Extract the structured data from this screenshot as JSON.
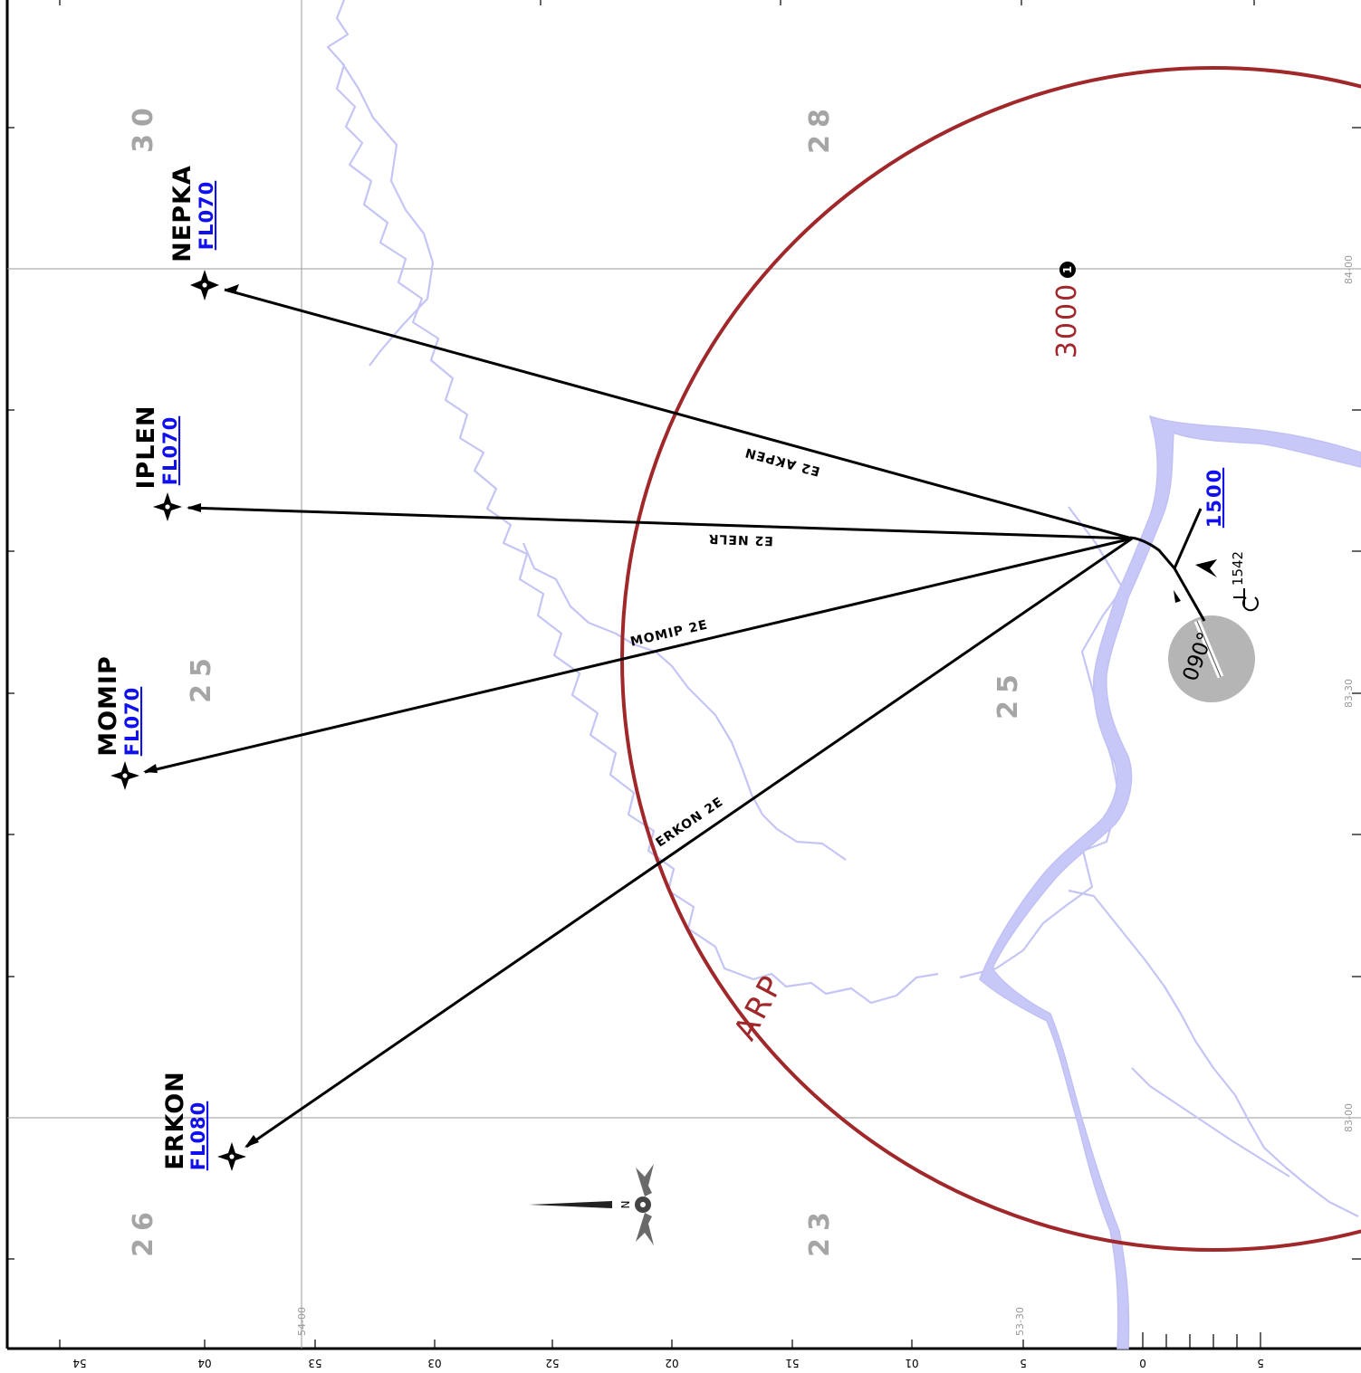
{
  "chart": {
    "arp_label": "ARP",
    "msa_altitude": "3000",
    "msa_note_marker": "1",
    "climb_altitude": "1500",
    "runway_label": "090°",
    "obstacle_elevation": "1542",
    "north_label": "N",
    "colors": {
      "msa_circle": "#a0272a",
      "flight_level": "#1010ee",
      "river": "#c5c5f5",
      "grid": "#999999",
      "elevation": "#a5a5a5",
      "airport_area": "#b5b5b5"
    }
  },
  "waypoints": [
    {
      "name": "NEPKA",
      "level": "FL070"
    },
    {
      "name": "IPLEN",
      "level": "FL070"
    },
    {
      "name": "MOMIP",
      "level": "FL070"
    },
    {
      "name": "ERKON",
      "level": "FL080"
    }
  ],
  "routes": [
    {
      "label": "E2 AKPEN"
    },
    {
      "label": "E2 NELR"
    },
    {
      "label": "MOMIP 2E"
    },
    {
      "label": "ERKON 2E"
    }
  ],
  "grid_elevations": [
    "30",
    "28",
    "25",
    "25",
    "26",
    "23"
  ],
  "coordinates": {
    "longitude_labels": [
      "84-00",
      "83-30",
      "83-00"
    ],
    "latitude_labels": [
      "54-00",
      "53-30"
    ]
  },
  "distance_scale": [
    "54",
    "04",
    "53",
    "03",
    "52",
    "02",
    "51",
    "01",
    "5",
    "0",
    "5"
  ]
}
